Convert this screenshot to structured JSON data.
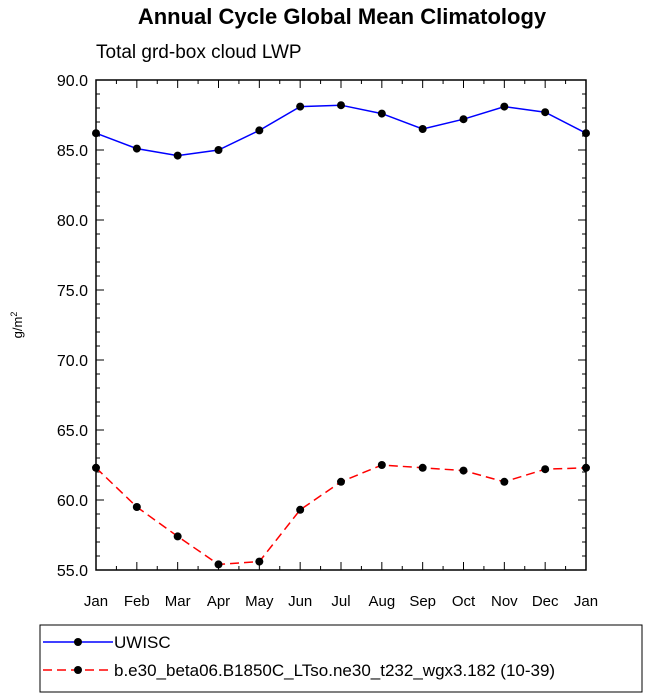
{
  "chart_data": {
    "type": "line",
    "title": "Annual Cycle Global Mean Climatology",
    "subtitle": "Total grd-box cloud LWP",
    "ylabel": "g/m",
    "ylabel_superscript": "2",
    "ylim": [
      55.0,
      90.0
    ],
    "ytick_labels": [
      "55.0",
      "60.0",
      "65.0",
      "70.0",
      "75.0",
      "80.0",
      "85.0",
      "90.0"
    ],
    "categories": [
      "Jan",
      "Feb",
      "Mar",
      "Apr",
      "May",
      "Jun",
      "Jul",
      "Aug",
      "Sep",
      "Oct",
      "Nov",
      "Dec",
      "Jan"
    ],
    "series": [
      {
        "name": "UWISC",
        "color": "#0000ff",
        "dash": "solid",
        "values": [
          86.2,
          85.1,
          84.6,
          85.0,
          86.4,
          88.1,
          88.2,
          87.6,
          86.5,
          87.2,
          88.1,
          87.7,
          86.2
        ]
      },
      {
        "name": "b.e30_beta06.B1850C_LTso.ne30_t232_wgx3.182 (10-39)",
        "color": "#ff0000",
        "dash": "dashed",
        "values": [
          62.3,
          59.5,
          57.4,
          55.4,
          55.6,
          59.3,
          61.3,
          62.5,
          62.3,
          62.1,
          61.3,
          62.2,
          62.3
        ]
      }
    ],
    "legend_location": "bottom"
  }
}
